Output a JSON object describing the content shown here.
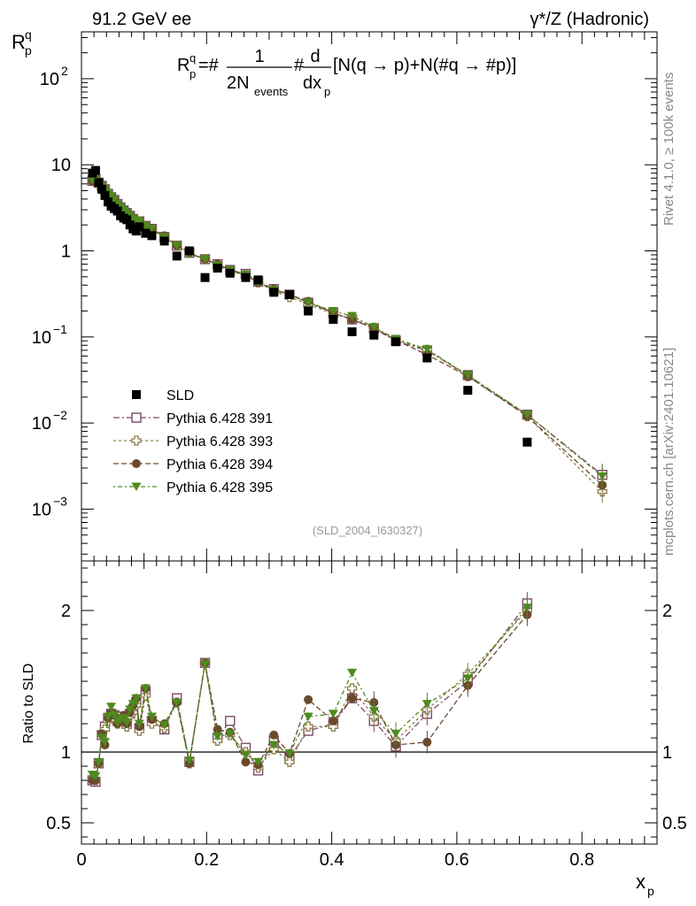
{
  "header": {
    "left_title": "91.2 GeV ee",
    "right_title": "γ*/Z (Hadronic)"
  },
  "side_labels": {
    "rivet": "Rivet 4.1.0, ≥ 100k events",
    "mcplots": "mcplots.cern.ch [arXiv:2401.10621]"
  },
  "formula": {
    "lhs": "R",
    "lhs_sup": "q",
    "lhs_sub": "p",
    "eq": "=#",
    "frac1_num": "1",
    "frac1_den": "2N",
    "frac1_den_sub": "events",
    "hash": "#",
    "frac2_num": "d",
    "frac2_den": "dx",
    "frac2_den_sub": "p",
    "rhs": "[N(q →  p)+N(#q →  #p)]"
  },
  "watermark": "(SLD_2004_I630327)",
  "colors": {
    "data": "#000000",
    "s391": "#7b4a66",
    "s393": "#8c7c4a",
    "s394": "#6b4a2e",
    "s395": "#4e8a1e"
  },
  "chart_data": [
    {
      "type": "scatter",
      "title": "R_p^q",
      "ylabel": "R_p^q",
      "xlabel": "x_p",
      "yscale": "log",
      "ylim": [
        0.00025,
        350
      ],
      "xlim": [
        0,
        0.92
      ],
      "ytick_labels": [
        "10^-3",
        "10^-2",
        "10^-1",
        "1",
        "10",
        "10^2"
      ],
      "legend": [
        "SLD",
        "Pythia 6.428 391",
        "Pythia 6.428 393",
        "Pythia 6.428 394",
        "Pythia 6.428 395"
      ],
      "x": [
        0.0175,
        0.0225,
        0.0275,
        0.0325,
        0.0375,
        0.0425,
        0.0475,
        0.0525,
        0.0575,
        0.0625,
        0.0675,
        0.0725,
        0.0775,
        0.0825,
        0.0875,
        0.0925,
        0.1025,
        0.1125,
        0.1325,
        0.1525,
        0.1725,
        0.1975,
        0.2175,
        0.2375,
        0.2625,
        0.2825,
        0.3075,
        0.3325,
        0.3625,
        0.4025,
        0.4325,
        0.4675,
        0.5025,
        0.5525,
        0.6175,
        0.7125,
        0.8325
      ],
      "series": [
        {
          "name": "SLD",
          "values": [
            8.0,
            8.6,
            6.2,
            5.2,
            4.4,
            3.7,
            3.3,
            3.1,
            2.9,
            2.55,
            2.4,
            2.3,
            2.0,
            1.8,
            1.7,
            1.9,
            1.6,
            1.5,
            1.3,
            0.87,
            1.0,
            0.49,
            0.63,
            0.55,
            0.49,
            0.46,
            0.33,
            0.31,
            0.2,
            0.16,
            0.115,
            0.105,
            0.088,
            0.057,
            0.024,
            0.006,
            null
          ]
        },
        {
          "name": "Pythia 6.428 391",
          "values": [
            6.5,
            6.8,
            6.2,
            5.7,
            5.2,
            4.6,
            4.2,
            3.9,
            3.5,
            3.2,
            2.95,
            2.75,
            2.55,
            2.35,
            2.2,
            2.2,
            1.95,
            1.8,
            1.45,
            1.15,
            0.95,
            0.8,
            0.7,
            0.6,
            0.54,
            0.44,
            0.36,
            0.31,
            0.25,
            0.19,
            0.16,
            0.125,
            0.09,
            0.069,
            0.036,
            0.0125,
            0.0025
          ]
        },
        {
          "name": "Pythia 6.428 393",
          "values": [
            6.5,
            6.7,
            6.1,
            5.6,
            5.0,
            4.5,
            4.1,
            3.8,
            3.4,
            3.1,
            2.9,
            2.7,
            2.5,
            2.3,
            2.15,
            2.15,
            1.9,
            1.75,
            1.45,
            1.15,
            0.95,
            0.8,
            0.68,
            0.58,
            0.52,
            0.43,
            0.34,
            0.29,
            0.24,
            0.185,
            0.165,
            0.128,
            0.092,
            0.071,
            0.035,
            0.012,
            0.0016
          ]
        },
        {
          "name": "Pythia 6.428 394",
          "values": [
            6.4,
            6.9,
            6.2,
            5.6,
            5.1,
            4.6,
            4.2,
            3.9,
            3.5,
            3.2,
            2.95,
            2.75,
            2.55,
            2.35,
            2.25,
            2.2,
            1.95,
            1.8,
            1.5,
            1.15,
            0.95,
            0.8,
            0.7,
            0.6,
            0.52,
            0.43,
            0.36,
            0.31,
            0.26,
            0.19,
            0.158,
            0.128,
            0.092,
            0.062,
            0.035,
            0.012,
            0.0019
          ]
        },
        {
          "name": "Pythia 6.428 395",
          "values": [
            6.6,
            7.0,
            6.3,
            5.7,
            5.2,
            4.7,
            4.3,
            3.9,
            3.5,
            3.2,
            2.95,
            2.75,
            2.55,
            2.35,
            2.25,
            2.2,
            1.95,
            1.8,
            1.45,
            1.15,
            0.92,
            0.8,
            0.68,
            0.6,
            0.53,
            0.43,
            0.35,
            0.31,
            0.25,
            0.2,
            0.175,
            0.13,
            0.095,
            0.072,
            0.036,
            0.0125,
            0.0024
          ]
        }
      ]
    },
    {
      "type": "scatter",
      "title": "Ratio to SLD",
      "ylabel": "Ratio to SLD",
      "xlabel": "x_p",
      "ylim": [
        0.35,
        2.35
      ],
      "xlim": [
        0,
        0.92
      ],
      "ytick_labels": [
        "0.5",
        "1",
        "2"
      ],
      "xtick_labels": [
        "0",
        "0.2",
        "0.4",
        "0.6",
        "0.8"
      ],
      "x": [
        0.0175,
        0.0225,
        0.0275,
        0.0325,
        0.0375,
        0.0425,
        0.0475,
        0.0525,
        0.0575,
        0.0625,
        0.0675,
        0.0725,
        0.0775,
        0.0825,
        0.0875,
        0.0925,
        0.1025,
        0.1125,
        0.1325,
        0.1525,
        0.1725,
        0.1975,
        0.2175,
        0.2375,
        0.2625,
        0.2825,
        0.3075,
        0.3325,
        0.3625,
        0.4025,
        0.4325,
        0.4675,
        0.5025,
        0.5525,
        0.6175,
        0.7125,
        0.8325
      ],
      "series": [
        {
          "name": "Pythia 6.428 391",
          "values": [
            0.8,
            0.79,
            0.92,
            1.12,
            1.18,
            1.24,
            1.27,
            1.26,
            1.22,
            1.25,
            1.23,
            1.2,
            1.27,
            1.3,
            1.35,
            1.17,
            1.43,
            1.22,
            1.16,
            1.38,
            0.93,
            1.63,
            1.1,
            1.22,
            1.03,
            0.87,
            1.08,
            0.96,
            1.15,
            1.2,
            1.38,
            1.22,
            1.04,
            1.27,
            1.5,
            2.05,
            null
          ]
        },
        {
          "name": "Pythia 6.428 393",
          "values": [
            0.81,
            0.8,
            0.92,
            1.12,
            1.16,
            1.22,
            1.25,
            1.23,
            1.2,
            1.22,
            1.2,
            1.18,
            1.25,
            1.28,
            1.33,
            1.15,
            1.4,
            1.2,
            1.17,
            1.35,
            0.92,
            1.63,
            1.08,
            1.12,
            1.0,
            0.89,
            1.02,
            0.93,
            1.18,
            1.18,
            1.45,
            1.25,
            1.08,
            1.3,
            1.55,
            2.0,
            null
          ]
        },
        {
          "name": "Pythia 6.428 394",
          "values": [
            0.8,
            0.8,
            0.92,
            1.13,
            1.05,
            1.24,
            1.28,
            1.26,
            1.2,
            1.22,
            1.26,
            1.2,
            1.28,
            1.33,
            1.38,
            1.18,
            1.45,
            1.23,
            1.2,
            1.35,
            0.92,
            1.63,
            1.16,
            1.14,
            0.93,
            0.91,
            1.12,
            0.99,
            1.37,
            1.22,
            1.38,
            1.35,
            1.05,
            1.07,
            1.47,
            1.97,
            null
          ]
        },
        {
          "name": "Pythia 6.428 395",
          "values": [
            0.84,
            0.83,
            0.93,
            1.1,
            1.07,
            1.25,
            1.32,
            1.26,
            1.21,
            1.23,
            1.24,
            1.21,
            1.3,
            1.34,
            1.38,
            1.2,
            1.45,
            1.25,
            1.19,
            1.35,
            0.94,
            1.62,
            1.11,
            1.13,
            0.98,
            0.93,
            1.05,
            0.99,
            1.25,
            1.27,
            1.56,
            1.29,
            1.13,
            1.34,
            1.52,
            2.02,
            null
          ]
        }
      ]
    }
  ]
}
